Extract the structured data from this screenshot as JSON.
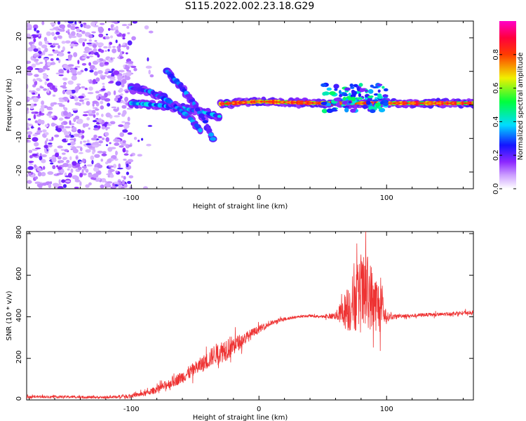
{
  "title": "S115.2022.002.23.18.G29",
  "chart_data": [
    {
      "type": "heatmap",
      "xlabel": "Height of straight line (km)",
      "ylabel": "Frequency (Hz)",
      "xlim": [
        -182,
        168
      ],
      "ylim": [
        -25,
        25
      ],
      "x_ticks": [
        -100,
        0,
        100
      ],
      "x_tick_labels": [
        "-100",
        "0",
        "100"
      ],
      "y_ticks": [
        20,
        10,
        0,
        -10,
        -20
      ],
      "y_tick_labels": [
        "20",
        "10",
        "0",
        "-10",
        "-20"
      ],
      "colorbar": {
        "label": "Normalized spectral amplitude",
        "range": [
          0.0,
          1.0
        ],
        "ticks": [
          0.0,
          0.2,
          0.4,
          0.6,
          0.8
        ],
        "tick_labels": [
          "0.0",
          "0.2",
          "0.4",
          "0.6",
          "0.8"
        ],
        "colormap": "white-purple-blue-cyan-green-yellow-red-magenta"
      },
      "features": [
        {
          "name": "noise-region",
          "x_range": [
            -182,
            -100
          ],
          "y_range": [
            -25,
            25
          ],
          "amplitude": 0.1
        },
        {
          "name": "center-line",
          "x": [
            -100,
            -80,
            -60,
            -40,
            -30
          ],
          "y": [
            0.5,
            0,
            -1,
            -2.5,
            -3.5
          ],
          "amplitude": 0.35
        },
        {
          "name": "descending-line-a",
          "x": [
            -100,
            -85,
            -70,
            -55,
            -45
          ],
          "y": [
            5,
            4,
            1,
            -3.5,
            -8
          ],
          "amplitude": 0.3
        },
        {
          "name": "descending-line-b",
          "x": [
            -72,
            -62,
            -52,
            -42,
            -35
          ],
          "y": [
            10,
            6,
            1,
            -5,
            -11
          ],
          "amplitude": 0.3
        },
        {
          "name": "steady-line",
          "x": [
            -30,
            0,
            50,
            100,
            168
          ],
          "y": [
            0.3,
            1,
            0.5,
            0.5,
            0.5
          ],
          "amplitude": 0.8
        },
        {
          "name": "scattered-band",
          "x_range": [
            50,
            100
          ],
          "y_range": [
            -2,
            6
          ],
          "amplitude": 0.3
        }
      ]
    },
    {
      "type": "line",
      "xlabel": "Height of straight line (km)",
      "ylabel": "SNR (10 * v/v)",
      "xlim": [
        -182,
        168
      ],
      "ylim": [
        0,
        810
      ],
      "x_ticks": [
        -100,
        0,
        100
      ],
      "x_tick_labels": [
        "-100",
        "0",
        "100"
      ],
      "y_ticks": [
        0,
        200,
        400,
        600,
        800
      ],
      "y_tick_labels": [
        "0",
        "200",
        "400",
        "600",
        "800"
      ],
      "series": [
        {
          "color": "#ee3333",
          "x": [
            -182,
            -150,
            -120,
            -100,
            -90,
            -80,
            -70,
            -60,
            -50,
            -40,
            -35,
            -30,
            -25,
            -20,
            -15,
            -10,
            -5,
            0,
            10,
            20,
            30,
            40,
            50,
            60,
            65,
            70,
            75,
            80,
            85,
            90,
            95,
            100,
            105,
            110,
            120,
            130,
            140,
            150,
            160,
            168
          ],
          "y": [
            15,
            15,
            12,
            20,
            30,
            50,
            80,
            110,
            150,
            190,
            220,
            230,
            250,
            260,
            280,
            300,
            320,
            340,
            370,
            390,
            400,
            405,
            400,
            405,
            420,
            440,
            480,
            500,
            520,
            480,
            440,
            400,
            400,
            405,
            405,
            410,
            410,
            415,
            420,
            420
          ],
          "spread": [
            10,
            10,
            10,
            15,
            20,
            30,
            40,
            50,
            60,
            70,
            80,
            90,
            100,
            80,
            60,
            50,
            40,
            30,
            20,
            15,
            10,
            10,
            10,
            30,
            100,
            200,
            250,
            300,
            300,
            250,
            200,
            40,
            20,
            15,
            15,
            15,
            15,
            15,
            15,
            15
          ]
        }
      ]
    }
  ]
}
